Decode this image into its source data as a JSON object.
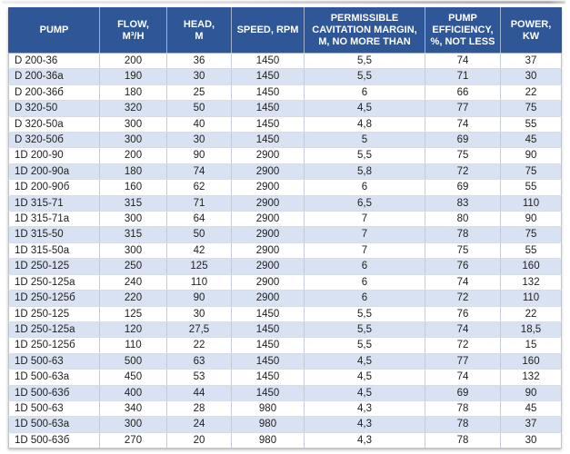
{
  "colors": {
    "header_bg": "#2f5696",
    "header_text": "#ffffff",
    "row_alt_bg": "#d9e2f2",
    "border_vertical": "#c5cbd6",
    "border_horizontal": "#d8dce3",
    "outer_border": "#bcc2cc",
    "cell_text": "#212121"
  },
  "table": {
    "columns": [
      "PUMP",
      "FLOW,\nM³/H",
      "HEAD,\nM",
      "SPEED, RPM",
      "PERMISSIBLE\nCAVITATION MARGIN,\nM, NO MORE THAN",
      "PUMP\nEFFICIENCY,\n%, NOT LESS",
      "POWER,\nKW"
    ],
    "rows": [
      [
        "D 200-36",
        "200",
        "36",
        "1450",
        "5,5",
        "74",
        "37"
      ],
      [
        "D 200-36a",
        "190",
        "30",
        "1450",
        "5,5",
        "71",
        "30"
      ],
      [
        "D 200-36б",
        "180",
        "25",
        "1450",
        "6",
        "66",
        "22"
      ],
      [
        "D 320-50",
        "320",
        "50",
        "1450",
        "4,5",
        "77",
        "75"
      ],
      [
        "D 320-50a",
        "300",
        "40",
        "1450",
        "4,8",
        "74",
        "55"
      ],
      [
        "D 320-50б",
        "300",
        "30",
        "1450",
        "5",
        "69",
        "45"
      ],
      [
        "1D 200-90",
        "200",
        "90",
        "2900",
        "5,5",
        "75",
        "90"
      ],
      [
        "1D 200-90a",
        "180",
        "74",
        "2900",
        "5,8",
        "72",
        "75"
      ],
      [
        "1D 200-90б",
        "160",
        "62",
        "2900",
        "6",
        "69",
        "55"
      ],
      [
        "1D 315-71",
        "315",
        "71",
        "2900",
        "6,5",
        "83",
        "110"
      ],
      [
        "1D 315-71a",
        "300",
        "64",
        "2900",
        "7",
        "80",
        "90"
      ],
      [
        "1D 315-50",
        "315",
        "50",
        "2900",
        "7",
        "78",
        "75"
      ],
      [
        "1D 315-50a",
        "300",
        "42",
        "2900",
        "7",
        "75",
        "55"
      ],
      [
        "1D 250-125",
        "250",
        "125",
        "2900",
        "6",
        "76",
        "160"
      ],
      [
        "1D 250-125a",
        "240",
        "110",
        "2900",
        "6",
        "74",
        "132"
      ],
      [
        "1D 250-125б",
        "220",
        "90",
        "2900",
        "6",
        "72",
        "110"
      ],
      [
        "1D 250-125",
        "125",
        "30",
        "1450",
        "5,5",
        "76",
        "22"
      ],
      [
        "1D 250-125a",
        "120",
        "27,5",
        "1450",
        "5,5",
        "74",
        "18,5"
      ],
      [
        "1D 250-125б",
        "110",
        "22",
        "1450",
        "5,5",
        "72",
        "15"
      ],
      [
        "1D 500-63",
        "500",
        "63",
        "1450",
        "4,5",
        "77",
        "160"
      ],
      [
        "1D 500-63a",
        "450",
        "53",
        "1450",
        "4,5",
        "74",
        "132"
      ],
      [
        "1D 500-63б",
        "400",
        "44",
        "1450",
        "4,5",
        "69",
        "90"
      ],
      [
        "1D 500-63",
        "340",
        "28",
        "980",
        "4,3",
        "78",
        "45"
      ],
      [
        "1D 500-63a",
        "300",
        "24",
        "980",
        "4,3",
        "78",
        "37"
      ],
      [
        "1D 500-63б",
        "270",
        "20",
        "980",
        "4,3",
        "78",
        "30"
      ]
    ]
  }
}
